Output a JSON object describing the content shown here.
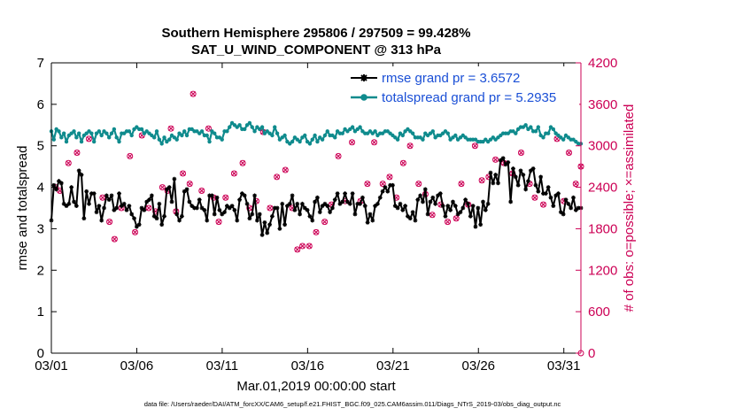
{
  "chart_data": {
    "type": "line",
    "title_line1": "Southern Hemisphere 295806 / 297509 = 99.428%",
    "title_line2": "SAT_U_WIND_COMPONENT @ 313 hPa",
    "xlabel": "Mar.01,2019 00:00:00 start",
    "ylabel_left": "rmse and totalspread",
    "ylabel_right": "# of obs: o=possible; ×=assimilated",
    "footer": "data file: /Users/raeder/DAI/ATM_forcXX/CAM6_setup/f.e21.FHIST_BGC.f09_025.CAM6assim.011/Diags_NTrS_2019-03/obs_diag_output.nc",
    "xlim": [
      1,
      32
    ],
    "ylim_left": [
      0,
      7
    ],
    "ylim_right": [
      0,
      4200
    ],
    "x_ticks": [
      1,
      6,
      11,
      16,
      21,
      26,
      31
    ],
    "x_tick_labels": [
      "03/01",
      "03/06",
      "03/11",
      "03/16",
      "03/21",
      "03/26",
      "03/31"
    ],
    "y_left_ticks": [
      "0",
      "1",
      "2",
      "3",
      "4",
      "5",
      "6",
      "7"
    ],
    "y_right_ticks": [
      "0",
      "600",
      "1200",
      "1800",
      "2400",
      "3000",
      "3600",
      "4200"
    ],
    "legend": [
      {
        "label": "rmse grand pr = 3.6572",
        "color": "#000000"
      },
      {
        "label": "totalspread grand pr = 5.2935",
        "color": "#0f8b8d"
      }
    ],
    "colors": {
      "rmse": "#000000",
      "spread": "#0f8b8d",
      "obs": "#cc0055"
    },
    "series": [
      {
        "name": "rmse",
        "axis": "left",
        "values": [
          3.2,
          4.05,
          3.95,
          4.15,
          4.1,
          3.6,
          3.55,
          3.6,
          4.0,
          3.65,
          3.55,
          4.4,
          4.3,
          3.25,
          3.9,
          3.6,
          3.85,
          3.85,
          3.4,
          3.55,
          3.2,
          3.5,
          3.8,
          3.7,
          3.8,
          3.45,
          3.5,
          3.85,
          3.55,
          3.6,
          3.45,
          3.55,
          3.35,
          3.25,
          3.05,
          3.1,
          3.5,
          3.45,
          3.65,
          3.7,
          3.8,
          3.3,
          3.25,
          3.6,
          3.1,
          3.3,
          3.95,
          4.0,
          3.65,
          4.2,
          3.35,
          3.2,
          3.3,
          3.9,
          3.95,
          3.65,
          3.55,
          3.5,
          3.5,
          3.7,
          3.5,
          3.45,
          3.2,
          3.8,
          3.8,
          3.35,
          3.75,
          3.45,
          3.35,
          3.4,
          3.55,
          3.5,
          3.55,
          3.45,
          3.2,
          3.7,
          3.85,
          3.8,
          3.6,
          3.25,
          3.35,
          3.8,
          3.2,
          3.35,
          2.85,
          3.15,
          2.9,
          3.1,
          3.3,
          3.5,
          3.5,
          3.0,
          3.6,
          3.1,
          3.55,
          3.6,
          3.8,
          3.45,
          3.6,
          3.35,
          3.6,
          3.5,
          3.45,
          3.3,
          3.2,
          3.65,
          3.75,
          3.4,
          3.55,
          3.6,
          3.55,
          3.4,
          3.5,
          3.7,
          3.85,
          3.6,
          3.65,
          3.85,
          3.65,
          3.6,
          3.85,
          3.35,
          3.6,
          3.6,
          3.75,
          3.55,
          3.15,
          3.35,
          3.2,
          3.55,
          3.6,
          3.75,
          3.9,
          4.0,
          3.9,
          4.05,
          4.05,
          3.55,
          3.5,
          3.6,
          3.45,
          3.55,
          3.3,
          3.25,
          3.4,
          3.2,
          3.7,
          3.8,
          3.65,
          3.95,
          3.35,
          3.65,
          3.75,
          3.6,
          3.8,
          3.85,
          3.55,
          3.3,
          3.55,
          3.45,
          3.65,
          3.55,
          3.35,
          3.4,
          3.5,
          3.7,
          3.6,
          3.3,
          3.55,
          3.05,
          3.5,
          3.1,
          3.65,
          3.45,
          3.6,
          4.35,
          4.1,
          4.3,
          4.1,
          4.65,
          4.7,
          4.55,
          4.6,
          3.65,
          4.45,
          4.25,
          4.05,
          4.4,
          4.3,
          3.95,
          4.15,
          4.4,
          4.45,
          4.05,
          3.9,
          4.25,
          3.85,
          3.85,
          4.0,
          3.75,
          3.55,
          3.8,
          3.85,
          3.4,
          3.35,
          3.7,
          3.6,
          3.5,
          3.75,
          3.45,
          3.5,
          3.5
        ]
      },
      {
        "name": "totalspread",
        "axis": "left",
        "values": [
          5.35,
          5.15,
          5.4,
          5.35,
          5.2,
          5.3,
          5.1,
          5.25,
          5.3,
          5.35,
          5.2,
          5.3,
          5.1,
          5.25,
          5.3,
          5.35,
          5.3,
          5.1,
          5.3,
          5.35,
          5.25,
          5.35,
          5.3,
          5.2,
          5.3,
          5.4,
          5.2,
          5.1,
          5.3,
          5.3,
          5.35,
          5.35,
          5.25,
          5.4,
          5.45,
          5.4,
          5.4,
          5.3,
          5.35,
          5.3,
          5.25,
          5.2,
          5.35,
          5.15,
          5.05,
          5.2,
          5.1,
          5.15,
          5.25,
          5.2,
          5.15,
          5.3,
          5.25,
          5.35,
          5.25,
          5.4,
          5.4,
          5.35,
          5.35,
          5.3,
          5.35,
          5.25,
          5.25,
          5.1,
          5.35,
          5.3,
          5.2,
          5.2,
          5.15,
          5.35,
          5.35,
          5.45,
          5.55,
          5.5,
          5.45,
          5.5,
          5.4,
          5.4,
          5.5,
          5.55,
          5.45,
          5.35,
          5.45,
          5.4,
          5.45,
          5.3,
          5.35,
          5.3,
          5.25,
          5.45,
          5.3,
          5.15,
          5.2,
          5.25,
          5.1,
          5.05,
          5.1,
          5.2,
          5.15,
          5.1,
          5.2,
          5.25,
          5.1,
          5.05,
          5.15,
          5.25,
          5.1,
          5.2,
          5.15,
          5.25,
          5.35,
          5.25,
          5.25,
          5.2,
          5.35,
          5.3,
          5.3,
          5.4,
          5.35,
          5.4,
          5.45,
          5.35,
          5.4,
          5.45,
          5.35,
          5.3,
          5.3,
          5.35,
          5.3,
          5.35,
          5.25,
          5.3,
          5.3,
          5.35,
          5.35,
          5.3,
          5.25,
          5.2,
          5.15,
          5.3,
          5.25,
          5.35,
          5.4,
          5.35,
          5.3,
          5.2,
          5.2,
          5.2,
          5.15,
          5.3,
          5.25,
          5.3,
          5.35,
          5.2,
          5.25,
          5.25,
          5.3,
          5.35,
          5.3,
          5.15,
          5.2,
          5.25,
          5.15,
          5.2,
          5.25,
          5.2,
          5.15,
          5.15,
          5.15,
          5.15,
          5.1,
          5.1,
          5.1,
          5.15,
          5.1,
          5.15,
          5.2,
          5.15,
          5.2,
          5.25,
          5.3,
          5.3,
          5.3,
          5.35,
          5.35,
          5.3,
          5.4,
          5.45,
          5.45,
          5.5,
          5.4,
          5.45,
          5.35,
          5.35,
          5.45,
          5.25,
          5.2,
          5.3,
          5.3,
          5.45,
          5.4,
          5.3,
          5.25,
          5.2,
          5.15,
          5.25,
          5.2,
          5.15,
          5.15,
          5.1,
          5.05,
          5.05
        ]
      },
      {
        "name": "obs_possible",
        "axis": "right",
        "points": [
          [
            1.25,
            2400
          ],
          [
            1.5,
            2350
          ],
          [
            2.0,
            2750
          ],
          [
            2.5,
            2900
          ],
          [
            3.2,
            3100
          ],
          [
            4.0,
            2250
          ],
          [
            4.4,
            1900
          ],
          [
            4.7,
            1650
          ],
          [
            5.1,
            2100
          ],
          [
            5.6,
            2850
          ],
          [
            5.9,
            1750
          ],
          [
            6.3,
            3150
          ],
          [
            6.7,
            2100
          ],
          [
            7.1,
            2050
          ],
          [
            7.5,
            2400
          ],
          [
            7.8,
            2350
          ],
          [
            8.0,
            3250
          ],
          [
            8.3,
            2050
          ],
          [
            8.7,
            2600
          ],
          [
            9.1,
            2450
          ],
          [
            9.3,
            3750
          ],
          [
            9.8,
            2350
          ],
          [
            10.2,
            3250
          ],
          [
            10.5,
            2250
          ],
          [
            10.8,
            1900
          ],
          [
            11.2,
            2250
          ],
          [
            11.7,
            2600
          ],
          [
            12.2,
            2750
          ],
          [
            12.6,
            2100
          ],
          [
            13.0,
            2200
          ],
          [
            13.4,
            3200
          ],
          [
            13.8,
            2100
          ],
          [
            14.2,
            2550
          ],
          [
            14.7,
            2650
          ],
          [
            15.1,
            2100
          ],
          [
            15.4,
            1500
          ],
          [
            15.7,
            1550
          ],
          [
            16.1,
            1550
          ],
          [
            16.5,
            1750
          ],
          [
            17.0,
            1900
          ],
          [
            17.4,
            2150
          ],
          [
            17.8,
            2850
          ],
          [
            18.2,
            2200
          ],
          [
            18.6,
            3050
          ],
          [
            19.1,
            2200
          ],
          [
            19.5,
            2450
          ],
          [
            19.9,
            3050
          ],
          [
            20.4,
            2450
          ],
          [
            20.8,
            2550
          ],
          [
            21.2,
            2250
          ],
          [
            21.6,
            2750
          ],
          [
            22.0,
            3000
          ],
          [
            22.5,
            2450
          ],
          [
            22.9,
            2300
          ],
          [
            23.3,
            2000
          ],
          [
            23.8,
            2150
          ],
          [
            24.2,
            1900
          ],
          [
            24.7,
            1950
          ],
          [
            25.0,
            2450
          ],
          [
            25.4,
            2150
          ],
          [
            25.8,
            3000
          ],
          [
            26.2,
            2500
          ],
          [
            26.6,
            2550
          ],
          [
            27.0,
            2800
          ],
          [
            27.5,
            2750
          ],
          [
            28.0,
            2600
          ],
          [
            28.5,
            2900
          ],
          [
            29.0,
            2450
          ],
          [
            29.3,
            2250
          ],
          [
            29.8,
            2150
          ],
          [
            30.2,
            3650
          ],
          [
            30.6,
            3100
          ],
          [
            31.0,
            2200
          ],
          [
            31.3,
            2900
          ],
          [
            31.7,
            2450
          ],
          [
            32.0,
            2700
          ],
          [
            32.0,
            0
          ]
        ]
      },
      {
        "name": "obs_assimilated",
        "axis": "right",
        "points": [
          [
            1.25,
            2400
          ],
          [
            1.5,
            2350
          ],
          [
            2.0,
            2750
          ],
          [
            2.5,
            2900
          ],
          [
            3.2,
            3100
          ],
          [
            4.0,
            2250
          ],
          [
            4.4,
            1900
          ],
          [
            4.7,
            1650
          ],
          [
            5.1,
            2100
          ],
          [
            5.6,
            2850
          ],
          [
            5.9,
            1750
          ],
          [
            6.3,
            3150
          ],
          [
            6.7,
            2100
          ],
          [
            7.1,
            2050
          ],
          [
            7.5,
            2400
          ],
          [
            7.8,
            2350
          ],
          [
            8.0,
            3250
          ],
          [
            8.3,
            2050
          ],
          [
            8.7,
            2600
          ],
          [
            9.1,
            2450
          ],
          [
            9.3,
            3750
          ],
          [
            9.8,
            2350
          ],
          [
            10.2,
            3250
          ],
          [
            10.5,
            2250
          ],
          [
            10.8,
            1900
          ],
          [
            11.2,
            2250
          ],
          [
            11.7,
            2600
          ],
          [
            12.2,
            2750
          ],
          [
            12.6,
            2100
          ],
          [
            13.0,
            2200
          ],
          [
            13.4,
            3200
          ],
          [
            13.8,
            2100
          ],
          [
            14.2,
            2550
          ],
          [
            14.7,
            2650
          ],
          [
            15.1,
            2100
          ],
          [
            15.4,
            1500
          ],
          [
            15.7,
            1550
          ],
          [
            16.1,
            1550
          ],
          [
            16.5,
            1750
          ],
          [
            17.0,
            1900
          ],
          [
            17.4,
            2150
          ],
          [
            17.8,
            2850
          ],
          [
            18.2,
            2200
          ],
          [
            18.6,
            3050
          ],
          [
            19.1,
            2200
          ],
          [
            19.5,
            2450
          ],
          [
            19.9,
            3050
          ],
          [
            20.4,
            2450
          ],
          [
            20.8,
            2550
          ],
          [
            21.2,
            2250
          ],
          [
            21.6,
            2750
          ],
          [
            22.0,
            3000
          ],
          [
            22.5,
            2450
          ],
          [
            22.9,
            2300
          ],
          [
            23.3,
            2000
          ],
          [
            23.8,
            2150
          ],
          [
            24.2,
            1900
          ],
          [
            24.7,
            1950
          ],
          [
            25.0,
            2450
          ],
          [
            25.4,
            2150
          ],
          [
            25.8,
            3000
          ],
          [
            26.2,
            2500
          ],
          [
            26.6,
            2550
          ],
          [
            27.0,
            2800
          ],
          [
            27.5,
            2750
          ],
          [
            28.0,
            2600
          ],
          [
            28.5,
            2900
          ],
          [
            29.0,
            2450
          ],
          [
            29.3,
            2250
          ],
          [
            29.8,
            2150
          ],
          [
            30.2,
            3650
          ],
          [
            30.6,
            3100
          ],
          [
            31.0,
            2200
          ],
          [
            31.3,
            2900
          ],
          [
            31.7,
            2450
          ],
          [
            32.0,
            2700
          ]
        ]
      }
    ]
  }
}
